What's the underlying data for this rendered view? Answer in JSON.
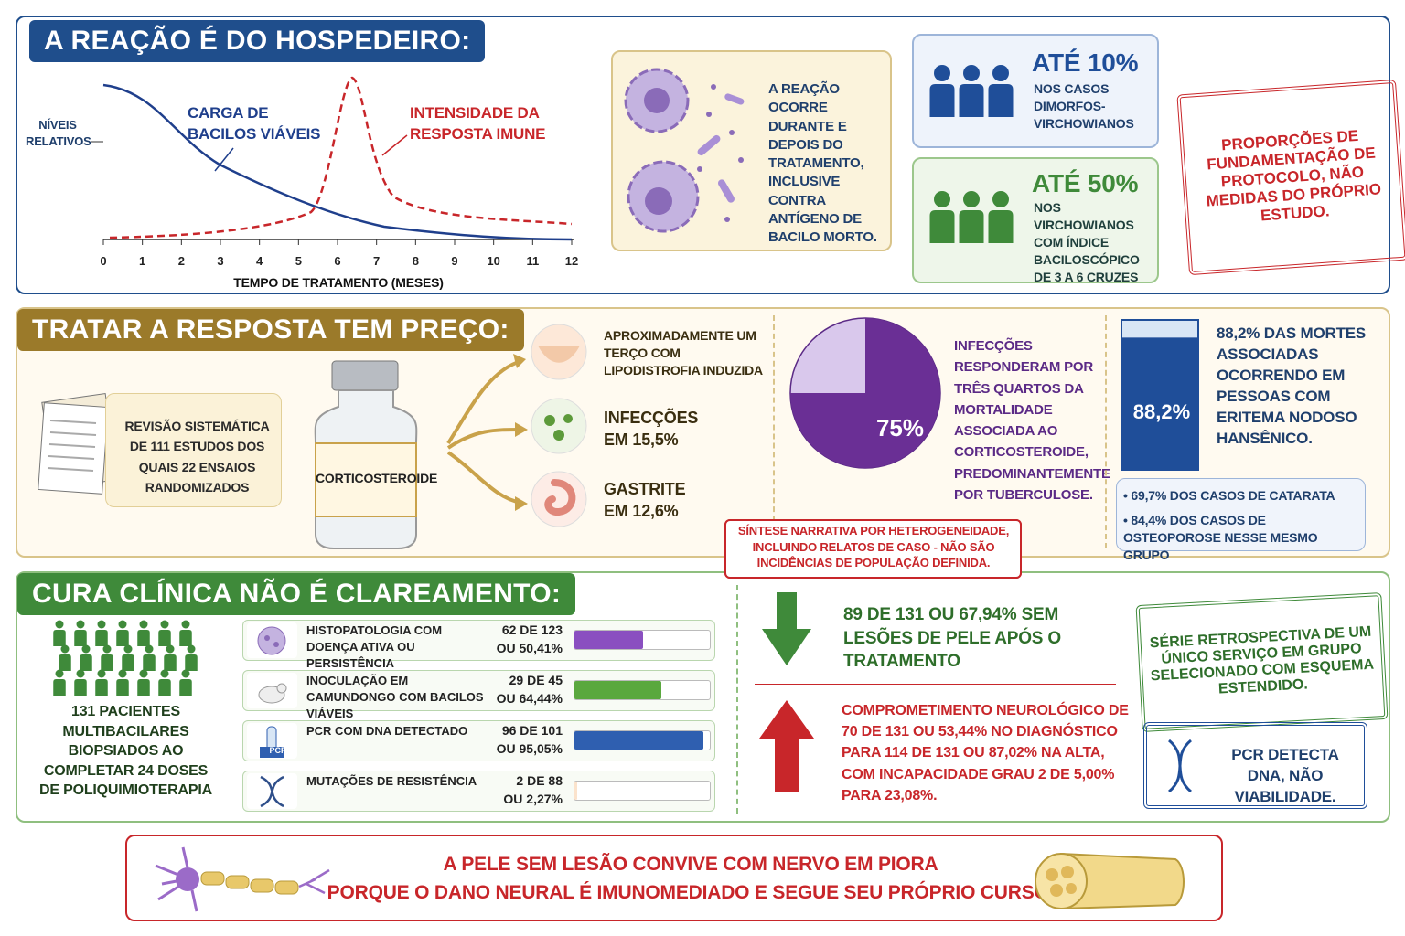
{
  "s1": {
    "title": "A REAÇÃO É DO HOSPEDEIRO:",
    "chart": {
      "y_label": "NÍVEIS RELATIVOS",
      "x_label": "TEMPO DE TRATAMENTO (MESES)",
      "xlim": [
        0,
        12
      ],
      "xticks": [
        0,
        1,
        2,
        3,
        4,
        5,
        6,
        7,
        8,
        9,
        10,
        11,
        12
      ],
      "curve_labels": [
        "CARGA DE BACILOS VIÁVEIS",
        "INTENSIDADE DA RESPOSTA IMUNE"
      ]
    },
    "reaction_note": "A REAÇÃO OCORRE DURANTE E DEPOIS DO TRATAMENTO, INCLUSIVE CONTRA ANTÍGENO DE BACILO MORTO.",
    "stats": [
      {
        "headline": "ATÉ 10%",
        "text": "NOS CASOS DIMORFOS-VIRCHOWIANOS"
      },
      {
        "headline": "ATÉ 50%",
        "text": "NOS VIRCHOWIANOS COM ÍNDICE BACILOSCÓPICO DE 3 A 6 CRUZES"
      }
    ],
    "stamp": "PROPORÇÕES DE FUNDAMENTAÇÃO DE PROTOCOLO, NÃO MEDIDAS DO PRÓPRIO ESTUDO."
  },
  "s2": {
    "title": "TRATAR A RESPOSTA TEM PREÇO:",
    "review": "REVISÃO SISTEMÁTICA DE 111 ESTUDOS DOS QUAIS 22 ENSAIOS RANDOMIZADOS",
    "bottle_label": "CORTICOSTEROIDE",
    "effects": [
      "APROXIMADAMENTE UM TERÇO COM LIPODISTROFIA INDUZIDA",
      "INFECÇÕES EM 15,5%",
      "GASTRITE EM 12,6%"
    ],
    "pie": {
      "value": 75,
      "value_label": "75%"
    },
    "pie_text": "INFECÇÕES RESPONDERAM POR TRÊS QUARTOS DA MORTALIDADE ASSOCIADA AO CORTICOSTEROIDE, PREDOMINANTEMENTE POR TUBERCULOSE.",
    "tank": {
      "value": 88.2,
      "value_label": "88,2%"
    },
    "tank_text": "88,2% DAS MORTES ASSOCIADAS OCORRENDO EM PESSOAS COM ERITEMA NODOSO HANSÊNICO.",
    "bullets": [
      "69,7% DOS CASOS DE CATARATA",
      "84,4% DOS CASOS DE OSTEOPOROSE NESSE MESMO GRUPO"
    ],
    "note": "SÍNTESE NARRATIVA POR HETEROGENEIDADE, INCLUINDO RELATOS DE CASO - NÃO SÃO INCIDÊNCIAS DE POPULAÇÃO DEFINIDA."
  },
  "s3": {
    "title": "CURA CLÍNICA NÃO É CLAREAMENTO:",
    "patients": "131 PACIENTES MULTIBACILARES BIOPSIADOS AO COMPLETAR 24 DOSES DE POLIQUIMIOTERAPIA",
    "rows": [
      {
        "label": "HISTOPATOLOGIA COM DOENÇA ATIVA OU PERSISTÊNCIA",
        "count": "62 DE 123",
        "value": 50.41,
        "value_label": "OU 50,41%"
      },
      {
        "label": "INOCULAÇÃO EM CAMUNDONGO COM BACILOS VIÁVEIS",
        "count": "29 DE 45",
        "value": 64.44,
        "value_label": "OU 64,44%"
      },
      {
        "label": "PCR COM DNA DETECTADO",
        "count": "96 DE 101",
        "value": 95.05,
        "value_label": "OU 95,05%"
      },
      {
        "label": "MUTAÇÕES DE RESISTÊNCIA",
        "count": "2 DE 88",
        "value": 2.27,
        "value_label": "OU 2,27%"
      }
    ],
    "pcr_icon": "PCR",
    "down_text": "89 DE 131 OU 67,94% SEM LESÕES DE PELE APÓS O TRATAMENTO",
    "up_text": "COMPROMETIMENTO NEUROLÓGICO DE 70 DE 131 OU 53,44% NO DIAGNÓSTICO PARA 114 DE 131 OU 87,02% NA ALTA, COM INCAPACIDADE GRAU 2 DE 5,00% PARA 23,08%.",
    "stamp_series": "SÉRIE RETROSPECTIVA DE UM ÚNICO SERVIÇO EM GRUPO SELECIONADO COM ESQUEMA ESTENDIDO.",
    "stamp_pcr": "PCR DETECTA DNA, NÃO VIABILIDADE."
  },
  "footer": {
    "lines": [
      "A PELE SEM LESÃO CONVIVE COM NERVO EM PIORA",
      "PORQUE O DANO NEURAL É IMUNOMEDIADO E SEGUE SEU PRÓPRIO CURSO."
    ]
  }
}
